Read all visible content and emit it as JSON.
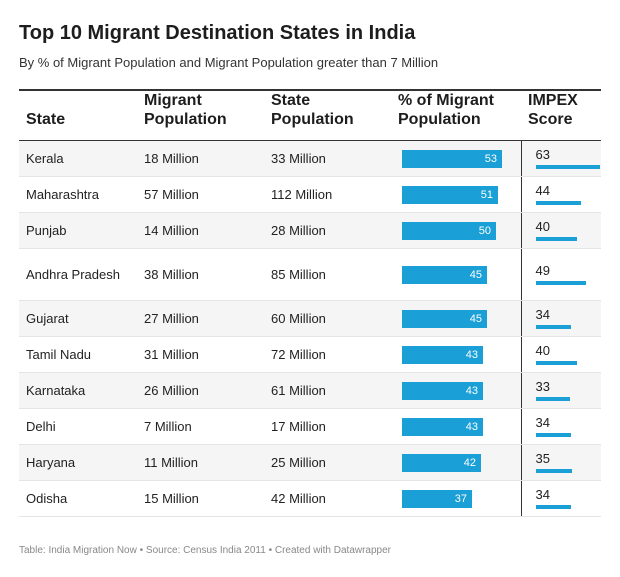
{
  "title": "Top 10 Migrant Destination States in India",
  "subtitle": "By % of Migrant Population and Migrant Population greater than 7 Million",
  "columns": [
    "State",
    "Migrant Population",
    "State Population",
    "% of Migrant Population",
    "IMPEX Score"
  ],
  "footer": "Table: India Migration Now • Source: Census India 2011 • Created with Datawrapper",
  "colors": {
    "bar": "#1a9fd6",
    "alt_row": "#f5f5f5"
  },
  "chart_data": {
    "type": "table",
    "bar_max_percent": 53,
    "impex_max": 63,
    "rows": [
      {
        "state": "Kerala",
        "migrant": "18 Million",
        "population": "33 Million",
        "percent": 53,
        "impex": 63
      },
      {
        "state": "Maharashtra",
        "migrant": "57 Million",
        "population": "112 Million",
        "percent": 51,
        "impex": 44
      },
      {
        "state": "Punjab",
        "migrant": "14 Million",
        "population": "28 Million",
        "percent": 50,
        "impex": 40
      },
      {
        "state": "Andhra Pradesh",
        "migrant": "38 Million",
        "population": "85 Million",
        "percent": 45,
        "impex": 49
      },
      {
        "state": "Gujarat",
        "migrant": "27 Million",
        "population": "60 Million",
        "percent": 45,
        "impex": 34
      },
      {
        "state": "Tamil Nadu",
        "migrant": "31 Million",
        "population": "72 Million",
        "percent": 43,
        "impex": 40
      },
      {
        "state": "Karnataka",
        "migrant": "26 Million",
        "population": "61 Million",
        "percent": 43,
        "impex": 33
      },
      {
        "state": "Delhi",
        "migrant": "7 Million",
        "population": "17 Million",
        "percent": 43,
        "impex": 34
      },
      {
        "state": "Haryana",
        "migrant": "11 Million",
        "population": "25 Million",
        "percent": 42,
        "impex": 35
      },
      {
        "state": "Odisha",
        "migrant": "15 Million",
        "population": "42 Million",
        "percent": 37,
        "impex": 34
      }
    ]
  }
}
